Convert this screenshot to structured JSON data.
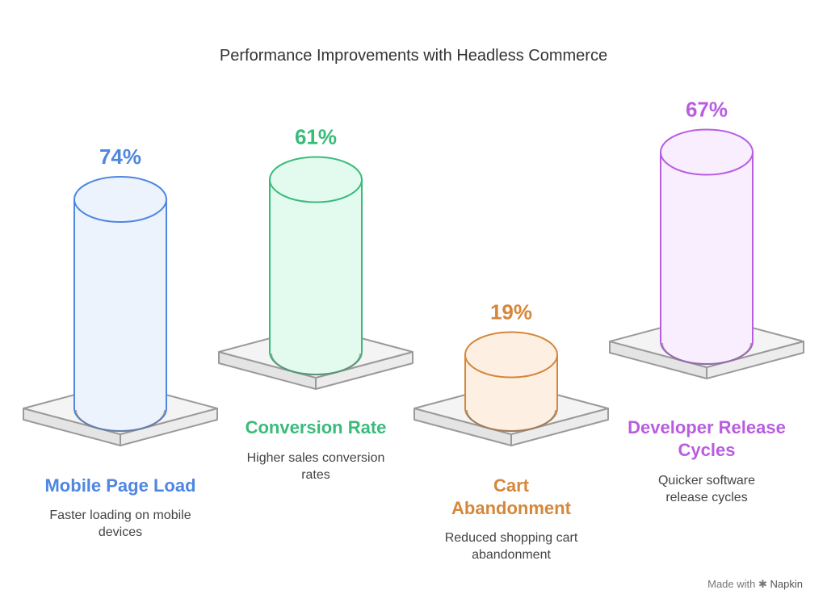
{
  "title": "Performance Improvements with Headless Commerce",
  "items": [
    {
      "percent": "74%",
      "value": 74,
      "label": "Mobile Page Load",
      "description": "Faster loading on mobile devices",
      "color": "#4f86e0",
      "fill": "#edf3fd"
    },
    {
      "percent": "61%",
      "value": 61,
      "label": "Conversion Rate",
      "description": "Higher sales conversion rates",
      "color": "#39bb7a",
      "fill": "#e3fbee"
    },
    {
      "percent": "19%",
      "value": 19,
      "label": "Cart Abandonment",
      "description": "Reduced shopping cart abandonment",
      "color": "#d5873a",
      "fill": "#fdf0e3"
    },
    {
      "percent": "67%",
      "value": 67,
      "label": "Developer Release Cycles",
      "description": "Quicker software release cycles",
      "color": "#b95de0",
      "fill": "#f8eefd"
    }
  ],
  "footer": {
    "prefix": "Made with",
    "brand": "Napkin",
    "icon": "napkin-logo-icon"
  }
}
